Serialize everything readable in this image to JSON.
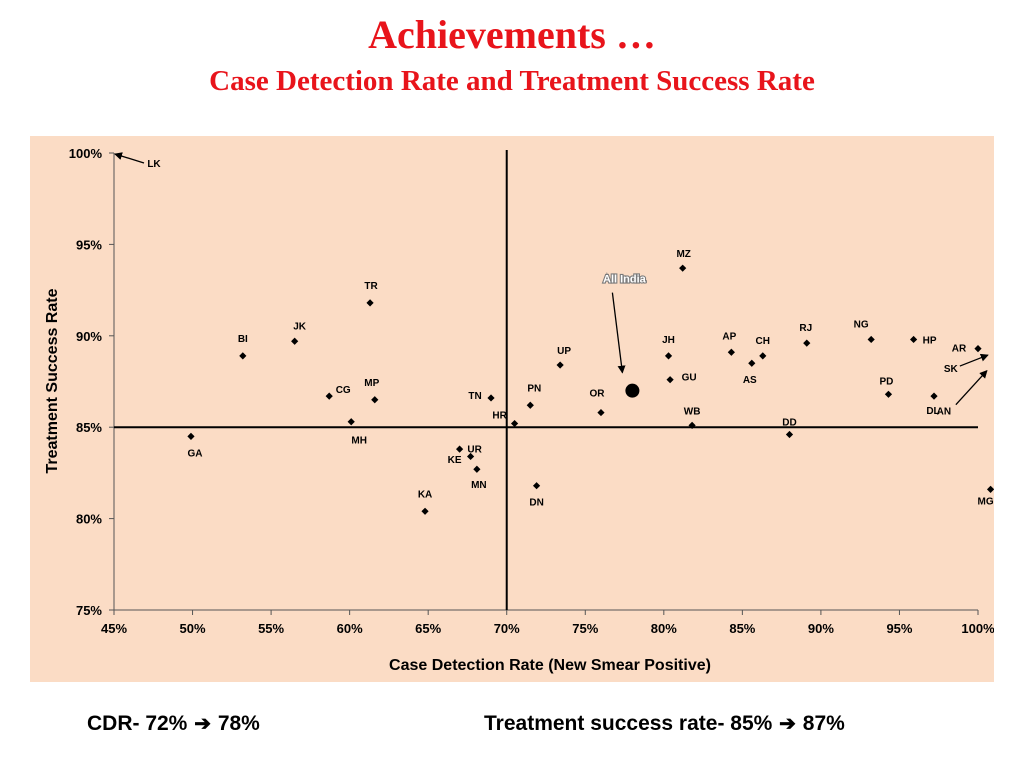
{
  "slide": {
    "title": "Achievements …",
    "subtitle": "Case Detection Rate and Treatment Success Rate"
  },
  "footer": {
    "left": {
      "label": "CDR-  72%",
      "value": "78%"
    },
    "right": {
      "label": "Treatment success rate- 85%",
      "value": " 87%"
    }
  },
  "colors": {
    "title": "#e8141b",
    "plot_background": "#fbdcc5",
    "markers": "#000000"
  },
  "chart_data": {
    "type": "scatter",
    "title": "",
    "xlabel": "Case Detection Rate (New Smear Positive)",
    "ylabel": "Treatment Success Rate",
    "xlim": [
      45,
      100
    ],
    "ylim": [
      75,
      100
    ],
    "xticks": [
      "45%",
      "50%",
      "55%",
      "60%",
      "65%",
      "70%",
      "75%",
      "80%",
      "85%",
      "90%",
      "95%",
      "100%"
    ],
    "yticks": [
      "75%",
      "80%",
      "85%",
      "90%",
      "95%",
      "100%"
    ],
    "reference_lines": {
      "x": 70,
      "y": 85
    },
    "grid": false,
    "points": [
      {
        "label": "LK",
        "x": 45,
        "y": 100
      },
      {
        "label": "GA",
        "x": 49.9,
        "y": 84.5
      },
      {
        "label": "BI",
        "x": 53.2,
        "y": 88.9
      },
      {
        "label": "JK",
        "x": 56.5,
        "y": 89.7
      },
      {
        "label": "CG",
        "x": 58.7,
        "y": 86.7
      },
      {
        "label": "MH",
        "x": 60.1,
        "y": 85.3
      },
      {
        "label": "TR",
        "x": 61.3,
        "y": 91.8
      },
      {
        "label": "MP",
        "x": 61.6,
        "y": 86.5
      },
      {
        "label": "KA",
        "x": 64.8,
        "y": 80.4
      },
      {
        "label": "KE",
        "x": 67.0,
        "y": 83.8
      },
      {
        "label": "UR",
        "x": 67.7,
        "y": 83.4
      },
      {
        "label": "MN",
        "x": 68.1,
        "y": 82.7
      },
      {
        "label": "TN",
        "x": 69.0,
        "y": 86.6
      },
      {
        "label": "HR",
        "x": 70.5,
        "y": 85.2
      },
      {
        "label": "PN",
        "x": 71.5,
        "y": 86.2
      },
      {
        "label": "DN",
        "x": 71.9,
        "y": 81.8
      },
      {
        "label": "UP",
        "x": 73.4,
        "y": 88.4
      },
      {
        "label": "OR",
        "x": 76.0,
        "y": 85.8
      },
      {
        "label": "All India",
        "x": 78,
        "y": 87
      },
      {
        "label": "JH",
        "x": 80.3,
        "y": 88.9
      },
      {
        "label": "GU",
        "x": 80.4,
        "y": 87.6
      },
      {
        "label": "MZ",
        "x": 81.2,
        "y": 93.7
      },
      {
        "label": "WB",
        "x": 81.8,
        "y": 85.1
      },
      {
        "label": "AP",
        "x": 84.3,
        "y": 89.1
      },
      {
        "label": "AS",
        "x": 85.6,
        "y": 88.5
      },
      {
        "label": "CH",
        "x": 86.3,
        "y": 88.9
      },
      {
        "label": "DD",
        "x": 88.0,
        "y": 84.6
      },
      {
        "label": "RJ",
        "x": 89.1,
        "y": 89.6
      },
      {
        "label": "NG",
        "x": 93.2,
        "y": 89.8
      },
      {
        "label": "PD",
        "x": 94.3,
        "y": 86.8
      },
      {
        "label": "HP",
        "x": 95.9,
        "y": 89.8
      },
      {
        "label": "DL",
        "x": 97.2,
        "y": 86.7
      },
      {
        "label": "AR",
        "x": 100.0,
        "y": 89.3
      },
      {
        "label": "SK",
        "x": 100.5,
        "y": 89.0
      },
      {
        "label": "AN",
        "x": 100.5,
        "y": 88.2
      },
      {
        "label": "MG",
        "x": 100.8,
        "y": 81.6
      }
    ]
  }
}
